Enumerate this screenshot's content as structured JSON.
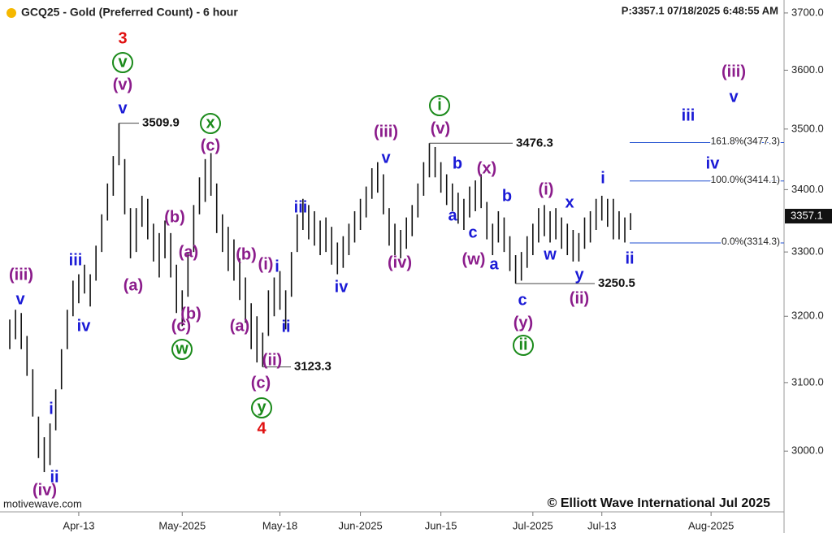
{
  "chart_data": {
    "type": "ohlc",
    "title": "GCQ25 - Gold (Preferred Count) - 6 hour",
    "status": "P:3357.1 07/18/2025 6:48:55 AM",
    "source": "motivewave.com",
    "copyright": "© Elliott Wave International Jul 2025",
    "log_scale": true,
    "color": "#111111",
    "x": [
      0,
      1,
      2,
      3,
      4,
      5,
      6,
      7,
      8,
      9,
      10,
      11,
      12,
      13,
      14,
      15,
      16,
      17,
      18,
      19,
      20,
      21,
      22,
      23,
      24,
      25,
      26,
      27,
      28,
      29,
      30,
      31,
      32,
      33,
      34,
      35,
      36,
      37,
      38,
      39,
      40,
      41,
      42,
      43,
      44,
      45,
      46,
      47,
      48,
      49,
      50,
      51,
      52,
      53,
      54,
      55,
      56,
      57,
      58,
      59,
      60,
      61,
      62,
      63,
      64,
      65,
      66,
      67,
      68,
      69,
      70,
      71,
      72,
      73,
      74,
      75,
      76,
      77,
      78,
      79,
      80,
      81,
      82,
      83,
      84,
      85,
      86,
      87,
      88,
      89,
      90,
      91,
      92,
      93,
      94,
      95,
      96,
      97,
      98,
      99,
      100,
      101,
      102,
      103,
      104,
      105,
      106,
      107,
      108
    ],
    "high": [
      3195,
      3210,
      3205,
      3170,
      3120,
      3050,
      3020,
      3040,
      3090,
      3150,
      3210,
      3255,
      3265,
      3280,
      3265,
      3310,
      3360,
      3410,
      3455,
      3509.9,
      3450,
      3370,
      3370,
      3390,
      3385,
      3345,
      3330,
      3350,
      3330,
      3280,
      3240,
      3300,
      3375,
      3420,
      3450,
      3460,
      3410,
      3360,
      3340,
      3320,
      3290,
      3260,
      3220,
      3200,
      3175,
      3240,
      3260,
      3270,
      3240,
      3300,
      3360,
      3385,
      3375,
      3365,
      3350,
      3355,
      3340,
      3315,
      3325,
      3345,
      3365,
      3385,
      3405,
      3435,
      3445,
      3425,
      3370,
      3345,
      3335,
      3355,
      3375,
      3410,
      3445,
      3476.3,
      3470,
      3445,
      3425,
      3410,
      3395,
      3385,
      3405,
      3415,
      3425,
      3380,
      3345,
      3365,
      3355,
      3325,
      3295,
      3300,
      3325,
      3345,
      3370,
      3375,
      3365,
      3370,
      3355,
      3345,
      3335,
      3330,
      3355,
      3365,
      3385,
      3390,
      3385,
      3385,
      3365,
      3355,
      3362
    ],
    "low": [
      3150,
      3165,
      3150,
      3110,
      3050,
      2990,
      2970,
      2980,
      3030,
      3090,
      3150,
      3200,
      3220,
      3235,
      3215,
      3255,
      3300,
      3350,
      3390,
      3440,
      3360,
      3290,
      3300,
      3340,
      3320,
      3285,
      3260,
      3290,
      3260,
      3205,
      3185,
      3230,
      3300,
      3360,
      3380,
      3390,
      3330,
      3300,
      3270,
      3255,
      3225,
      3190,
      3150,
      3130,
      3123.3,
      3170,
      3200,
      3210,
      3180,
      3230,
      3300,
      3335,
      3320,
      3310,
      3295,
      3300,
      3280,
      3265,
      3275,
      3295,
      3315,
      3335,
      3355,
      3385,
      3395,
      3360,
      3310,
      3295,
      3290,
      3305,
      3325,
      3355,
      3390,
      3420,
      3420,
      3395,
      3375,
      3365,
      3345,
      3335,
      3355,
      3365,
      3370,
      3320,
      3295,
      3315,
      3300,
      3270,
      3250.5,
      3255,
      3275,
      3295,
      3315,
      3325,
      3315,
      3320,
      3305,
      3295,
      3285,
      3285,
      3305,
      3315,
      3335,
      3350,
      3340,
      3320,
      3320,
      3315,
      3335
    ],
    "xlim": [
      -1.7,
      134.7
    ],
    "xticks": [
      {
        "value": 12,
        "label": "Apr-13"
      },
      {
        "value": 30,
        "label": "May-2025"
      },
      {
        "value": 47,
        "label": "May-18"
      },
      {
        "value": 61,
        "label": "Jun-2025"
      },
      {
        "value": 75,
        "label": "Jun-15"
      },
      {
        "value": 91,
        "label": "Jul-2025"
      },
      {
        "value": 103,
        "label": "Jul-13"
      },
      {
        "value": 122,
        "label": "Aug-2025"
      }
    ],
    "ylim": [
      2914,
      3723
    ],
    "yticks": [
      {
        "value": 3000,
        "label": "3000.0"
      },
      {
        "value": 3100,
        "label": "3100.0"
      },
      {
        "value": 3200,
        "label": "3200.0"
      },
      {
        "value": 3300,
        "label": "3300.0"
      },
      {
        "value": 3400,
        "label": "3400.0"
      },
      {
        "value": 3500,
        "label": "3500.0"
      },
      {
        "value": 3600,
        "label": "3600.0"
      },
      {
        "value": 3700,
        "label": "3700.0"
      }
    ],
    "last_price": 3357.1,
    "fib_color": "#1f4fd0",
    "fib_levels": [
      {
        "label": "161.8%(3477.3)",
        "value": 3477.3
      },
      {
        "label": "100.0%(3414.1)",
        "value": 3414.1
      },
      {
        "label": "0.0%(3314.3)",
        "value": 3314.3
      }
    ],
    "annotations": [
      {
        "text": "(iii)",
        "color": "#8b1c8b"
      },
      {
        "text": "v",
        "color": "#1a1ad6"
      },
      {
        "text": "iii",
        "color": "#1a1ad6"
      },
      {
        "text": "iv",
        "color": "#1a1ad6"
      },
      {
        "text": "i",
        "color": "#1a1ad6"
      },
      {
        "text": "ii",
        "color": "#1a1ad6"
      },
      {
        "text": "(iv)",
        "color": "#8b1c8b"
      },
      {
        "text": "3",
        "color": "#e01010"
      },
      {
        "text": "v",
        "color": "#1a8a1a",
        "circled": true
      },
      {
        "text": "(v)",
        "color": "#8b1c8b"
      },
      {
        "text": "v",
        "color": "#1a1ad6"
      },
      {
        "text": "(a)",
        "color": "#8b1c8b"
      },
      {
        "text": "(b)",
        "color": "#8b1c8b"
      },
      {
        "text": "(a)",
        "color": "#8b1c8b"
      },
      {
        "text": "(b)",
        "color": "#8b1c8b"
      },
      {
        "text": "(c)",
        "color": "#8b1c8b"
      },
      {
        "text": "w",
        "color": "#1a8a1a",
        "circled": true
      },
      {
        "text": "x",
        "color": "#1a8a1a",
        "circled": true
      },
      {
        "text": "(c)",
        "color": "#8b1c8b"
      },
      {
        "text": "(b)",
        "color": "#8b1c8b"
      },
      {
        "text": "(i)",
        "color": "#8b1c8b"
      },
      {
        "text": "i",
        "color": "#1a1ad6"
      },
      {
        "text": "(a)",
        "color": "#8b1c8b"
      },
      {
        "text": "ii",
        "color": "#1a1ad6"
      },
      {
        "text": "(ii)",
        "color": "#8b1c8b"
      },
      {
        "text": "(c)",
        "color": "#8b1c8b"
      },
      {
        "text": "y",
        "color": "#1a8a1a",
        "circled": true
      },
      {
        "text": "4",
        "color": "#e01010"
      },
      {
        "text": "iii",
        "color": "#1a1ad6"
      },
      {
        "text": "iv",
        "color": "#1a1ad6"
      },
      {
        "text": "(iii)",
        "color": "#8b1c8b"
      },
      {
        "text": "v",
        "color": "#1a1ad6"
      },
      {
        "text": "(iv)",
        "color": "#8b1c8b"
      },
      {
        "text": "i",
        "color": "#1a8a1a",
        "circled": true
      },
      {
        "text": "(v)",
        "color": "#8b1c8b"
      },
      {
        "text": "b",
        "color": "#1a1ad6"
      },
      {
        "text": "(x)",
        "color": "#8b1c8b"
      },
      {
        "text": "b",
        "color": "#1a1ad6"
      },
      {
        "text": "a",
        "color": "#1a1ad6"
      },
      {
        "text": "c",
        "color": "#1a1ad6"
      },
      {
        "text": "(w)",
        "color": "#8b1c8b"
      },
      {
        "text": "a",
        "color": "#1a1ad6"
      },
      {
        "text": "(i)",
        "color": "#8b1c8b"
      },
      {
        "text": "x",
        "color": "#1a1ad6"
      },
      {
        "text": "w",
        "color": "#1a1ad6"
      },
      {
        "text": "y",
        "color": "#1a1ad6"
      },
      {
        "text": "(ii)",
        "color": "#8b1c8b"
      },
      {
        "text": "c",
        "color": "#1a1ad6"
      },
      {
        "text": "(y)",
        "color": "#8b1c8b"
      },
      {
        "text": "ii",
        "color": "#1a8a1a",
        "circled": true
      },
      {
        "text": "i",
        "color": "#1a1ad6"
      },
      {
        "text": "ii",
        "color": "#1a1ad6"
      },
      {
        "text": "iii",
        "color": "#1a1ad6"
      },
      {
        "text": "iv",
        "color": "#1a1ad6"
      },
      {
        "text": "(iii)",
        "color": "#8b1c8b"
      },
      {
        "text": "v",
        "color": "#1a1ad6"
      }
    ]
  }
}
